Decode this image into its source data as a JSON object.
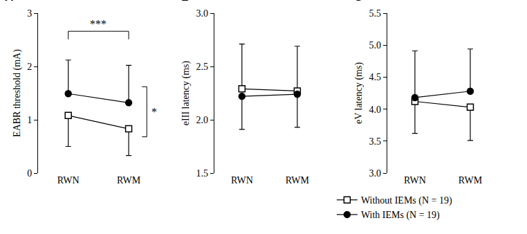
{
  "chart_data": [
    {
      "type": "line",
      "panel": "A",
      "y_label": "EABR threshold (mA)",
      "categories": [
        "RWN",
        "RWM"
      ],
      "ylim": [
        0,
        3
      ],
      "yticks": [
        0,
        1,
        2,
        3
      ],
      "legend": "bottom right",
      "series": [
        {
          "name": "Without IEMs (N = 19)",
          "color": "#000000",
          "marker": "square-open",
          "values": [
            1.08,
            0.83
          ],
          "error_minus": [
            0.58,
            0.5
          ]
        },
        {
          "name": "With IEMs (N = 19)",
          "color": "#000000",
          "marker": "circle",
          "values": [
            1.49,
            1.32
          ],
          "error_plus": [
            0.63,
            0.7
          ]
        }
      ],
      "annotations": [
        {
          "text": "***",
          "between": [
            "RWN",
            "RWM"
          ]
        },
        {
          "text": "*",
          "between": [
            "Without IEMs (N = 19)",
            "With IEMs (N = 19)"
          ]
        }
      ]
    },
    {
      "type": "line",
      "panel": "B",
      "y_label": "eIII latency (ms)",
      "categories": [
        "RWN",
        "RWM"
      ],
      "ylim": [
        1.5,
        3.0
      ],
      "yticks": [
        1.5,
        {
          "value": 2,
          "label": "2.0"
        },
        2.5,
        {
          "value": 3,
          "label": "3.0"
        }
      ],
      "series": [
        {
          "name": "Without IEMs (N = 19)",
          "color": "#000000",
          "marker": "square-open",
          "values": [
            2.29,
            2.27
          ],
          "error_plus": [
            0.42,
            0.42
          ]
        },
        {
          "name": "With IEMs (N = 19)",
          "color": "#000000",
          "marker": "circle",
          "values": [
            2.22,
            2.24
          ],
          "error_minus": [
            0.31,
            0.31
          ]
        }
      ]
    },
    {
      "type": "line",
      "panel": "C",
      "y_label": "eV latency (ms)",
      "categories": [
        "RWN",
        "RWM"
      ],
      "ylim": [
        3.0,
        5.5
      ],
      "yticks": [
        {
          "value": 3,
          "label": "3.0"
        },
        3.5,
        {
          "value": 4,
          "label": "4.0"
        },
        4.5,
        {
          "value": 5,
          "label": "5.0"
        },
        5.5
      ],
      "series": [
        {
          "name": "Without IEMs (N = 19)",
          "color": "#000000",
          "marker": "square-open",
          "values": [
            4.12,
            4.03
          ],
          "error_minus": [
            0.5,
            0.52
          ]
        },
        {
          "name": "With IEMs (N = 19)",
          "color": "#000000",
          "marker": "circle",
          "values": [
            4.18,
            4.28
          ],
          "error_plus": [
            0.73,
            0.66
          ]
        }
      ]
    }
  ]
}
